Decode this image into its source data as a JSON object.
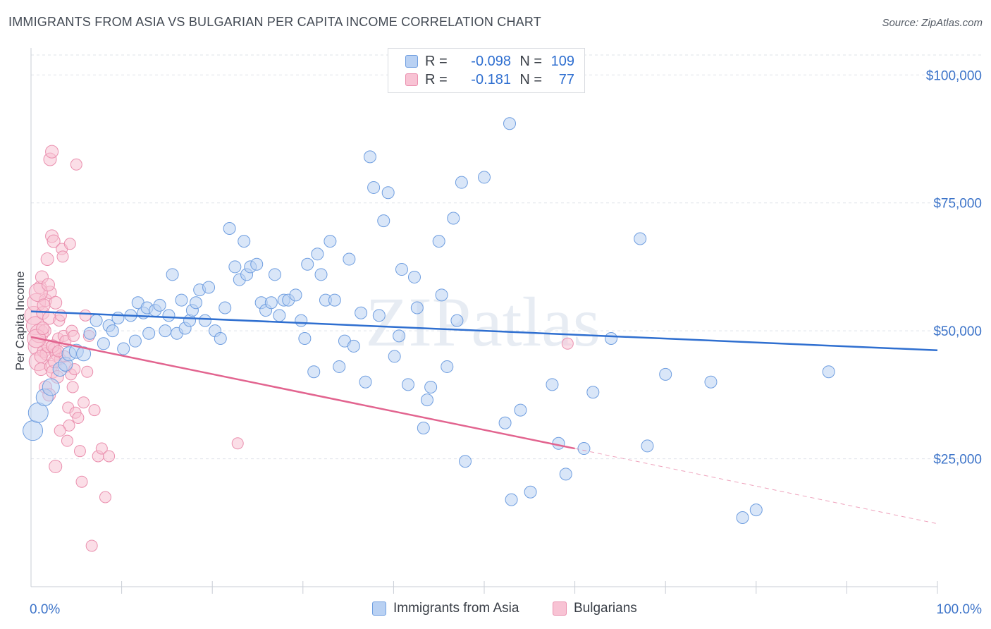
{
  "title": "IMMIGRANTS FROM ASIA VS BULGARIAN PER CAPITA INCOME CORRELATION CHART",
  "source": "Source: ZipAtlas.com",
  "legend": {
    "rows": [
      {
        "r_label": "R =",
        "r_value": "-0.098",
        "n_label": "N =",
        "n_value": "109"
      },
      {
        "r_label": "R =",
        "r_value": "-0.181",
        "n_label": "N =",
        "n_value": "77"
      }
    ]
  },
  "bottom_legend": [
    "Immigrants from Asia",
    "Bulgarians"
  ],
  "watermark": "ZIPatlas",
  "colors": {
    "blue_fill": "#b9d1f3",
    "blue_stroke": "#6f9ee0",
    "blue_line": "#2f6fd0",
    "pink_fill": "#f8c3d4",
    "pink_stroke": "#ea8fae",
    "pink_line": "#e2648f",
    "tick_text": "#3d74c9",
    "grid": "#dfe3ea"
  },
  "chart_data": {
    "type": "scatter",
    "title": "IMMIGRANTS FROM ASIA VS BULGARIAN PER CAPITA INCOME CORRELATION CHART",
    "xlabel": "",
    "ylabel": "Per Capita Income",
    "xlim": [
      0,
      100
    ],
    "ylim": [
      0,
      105000
    ],
    "x_tick_labels": [
      "0.0%",
      "100.0%"
    ],
    "y_ticks": [
      25000,
      50000,
      75000,
      100000
    ],
    "y_tick_labels": [
      "$25,000",
      "$50,000",
      "$75,000",
      "$100,000"
    ],
    "grid": "horizontal dashed",
    "legend_position": "top-center",
    "series": [
      {
        "name": "Immigrants from Asia",
        "r": -0.098,
        "n": 109,
        "trend": {
          "x": [
            0,
            100
          ],
          "y": [
            53800,
            46200
          ]
        },
        "points": [
          [
            0.2,
            30500
          ],
          [
            0.8,
            34000
          ],
          [
            1.5,
            37000
          ],
          [
            2.2,
            39000
          ],
          [
            3.2,
            42500
          ],
          [
            3.8,
            43500
          ],
          [
            4.2,
            45500
          ],
          [
            5.0,
            46000
          ],
          [
            5.8,
            45500
          ],
          [
            6.5,
            49500
          ],
          [
            7.2,
            52000
          ],
          [
            8.0,
            47500
          ],
          [
            8.6,
            51000
          ],
          [
            9.0,
            50000
          ],
          [
            9.6,
            52500
          ],
          [
            10.2,
            46500
          ],
          [
            11.0,
            53000
          ],
          [
            11.5,
            48000
          ],
          [
            11.8,
            55500
          ],
          [
            12.4,
            53500
          ],
          [
            12.8,
            54500
          ],
          [
            13.0,
            49500
          ],
          [
            13.7,
            54000
          ],
          [
            14.2,
            55000
          ],
          [
            14.8,
            50000
          ],
          [
            15.2,
            53000
          ],
          [
            15.6,
            61000
          ],
          [
            16.1,
            49500
          ],
          [
            16.6,
            56000
          ],
          [
            17.0,
            50500
          ],
          [
            17.5,
            52000
          ],
          [
            17.8,
            54000
          ],
          [
            18.2,
            55500
          ],
          [
            18.6,
            58000
          ],
          [
            19.2,
            52000
          ],
          [
            19.6,
            58500
          ],
          [
            20.3,
            50000
          ],
          [
            20.9,
            48500
          ],
          [
            21.4,
            54500
          ],
          [
            21.9,
            70000
          ],
          [
            22.5,
            62500
          ],
          [
            23.0,
            60000
          ],
          [
            23.5,
            67500
          ],
          [
            23.8,
            61000
          ],
          [
            24.2,
            62500
          ],
          [
            24.9,
            63000
          ],
          [
            25.4,
            55500
          ],
          [
            25.9,
            54000
          ],
          [
            26.5,
            55500
          ],
          [
            26.9,
            61000
          ],
          [
            27.4,
            53000
          ],
          [
            27.9,
            56000
          ],
          [
            28.4,
            56000
          ],
          [
            29.2,
            57000
          ],
          [
            29.8,
            52000
          ],
          [
            30.2,
            48500
          ],
          [
            30.5,
            63000
          ],
          [
            31.2,
            42000
          ],
          [
            31.6,
            65000
          ],
          [
            32.0,
            61000
          ],
          [
            32.5,
            56000
          ],
          [
            33.0,
            67500
          ],
          [
            33.5,
            56000
          ],
          [
            34.0,
            43000
          ],
          [
            34.6,
            48000
          ],
          [
            35.1,
            64000
          ],
          [
            35.6,
            47000
          ],
          [
            36.4,
            53500
          ],
          [
            36.9,
            40000
          ],
          [
            37.4,
            84000
          ],
          [
            37.8,
            78000
          ],
          [
            38.4,
            53000
          ],
          [
            38.9,
            71500
          ],
          [
            39.4,
            77000
          ],
          [
            40.1,
            45000
          ],
          [
            40.6,
            49000
          ],
          [
            40.9,
            62000
          ],
          [
            41.6,
            39500
          ],
          [
            42.3,
            60500
          ],
          [
            42.6,
            54500
          ],
          [
            43.3,
            31000
          ],
          [
            43.7,
            36500
          ],
          [
            44.1,
            39000
          ],
          [
            45.0,
            67500
          ],
          [
            45.3,
            57000
          ],
          [
            45.9,
            43000
          ],
          [
            46.6,
            72000
          ],
          [
            47.0,
            52000
          ],
          [
            47.5,
            79000
          ],
          [
            47.9,
            24500
          ],
          [
            50.0,
            80000
          ],
          [
            52.3,
            32000
          ],
          [
            52.8,
            90500
          ],
          [
            53.0,
            17000
          ],
          [
            54.0,
            34500
          ],
          [
            55.1,
            18500
          ],
          [
            57.5,
            39500
          ],
          [
            58.2,
            28000
          ],
          [
            59.0,
            22000
          ],
          [
            61.0,
            27000
          ],
          [
            62.0,
            38000
          ],
          [
            64.0,
            48500
          ],
          [
            67.2,
            68000
          ],
          [
            68.0,
            27500
          ],
          [
            70.0,
            41500
          ],
          [
            75.0,
            40000
          ],
          [
            78.5,
            13500
          ],
          [
            80.0,
            15000
          ],
          [
            88.0,
            42000
          ]
        ]
      },
      {
        "name": "Bulgarians",
        "r": -0.181,
        "n": 77,
        "trend": {
          "x": [
            0,
            60
          ],
          "y": [
            48800,
            27000
          ]
        },
        "trend_dashed_extension": {
          "x": [
            60,
            100
          ],
          "y": [
            27000,
            12300
          ]
        },
        "points": [
          [
            0.3,
            53000
          ],
          [
            0.5,
            51000
          ],
          [
            0.6,
            55500
          ],
          [
            0.7,
            47000
          ],
          [
            0.8,
            44000
          ],
          [
            0.9,
            49500
          ],
          [
            1.0,
            58500
          ],
          [
            1.1,
            42500
          ],
          [
            1.2,
            60500
          ],
          [
            1.3,
            53500
          ],
          [
            1.4,
            46000
          ],
          [
            1.5,
            50000
          ],
          [
            1.6,
            56000
          ],
          [
            1.7,
            45500
          ],
          [
            1.8,
            64000
          ],
          [
            1.9,
            47000
          ],
          [
            2.0,
            52500
          ],
          [
            2.1,
            57500
          ],
          [
            2.2,
            43000
          ],
          [
            2.3,
            68500
          ],
          [
            2.4,
            42000
          ],
          [
            2.5,
            67500
          ],
          [
            2.6,
            46500
          ],
          [
            2.7,
            55500
          ],
          [
            2.8,
            45500
          ],
          [
            2.9,
            41000
          ],
          [
            3.0,
            48500
          ],
          [
            3.1,
            52000
          ],
          [
            3.2,
            44500
          ],
          [
            3.3,
            53000
          ],
          [
            3.4,
            66000
          ],
          [
            3.5,
            64500
          ],
          [
            3.6,
            49000
          ],
          [
            3.7,
            45000
          ],
          [
            3.8,
            48000
          ],
          [
            3.9,
            43000
          ],
          [
            4.0,
            28500
          ],
          [
            4.1,
            35000
          ],
          [
            4.2,
            31500
          ],
          [
            4.3,
            67000
          ],
          [
            4.4,
            41500
          ],
          [
            4.5,
            50000
          ],
          [
            4.6,
            39000
          ],
          [
            4.7,
            49000
          ],
          [
            4.8,
            42500
          ],
          [
            4.9,
            34000
          ],
          [
            5.0,
            82500
          ],
          [
            5.2,
            33000
          ],
          [
            5.4,
            26500
          ],
          [
            5.6,
            20500
          ],
          [
            5.8,
            36000
          ],
          [
            6.0,
            53000
          ],
          [
            6.2,
            42000
          ],
          [
            6.4,
            49000
          ],
          [
            6.7,
            8000
          ],
          [
            7.0,
            34500
          ],
          [
            7.4,
            25500
          ],
          [
            7.8,
            27000
          ],
          [
            8.2,
            17500
          ],
          [
            8.6,
            25500
          ],
          [
            2.1,
            83500
          ],
          [
            2.3,
            85000
          ],
          [
            1.6,
            39000
          ],
          [
            2.7,
            23500
          ],
          [
            3.2,
            30500
          ],
          [
            2.0,
            37500
          ],
          [
            1.1,
            45000
          ],
          [
            0.8,
            57500
          ],
          [
            1.4,
            55000
          ],
          [
            2.6,
            44000
          ],
          [
            1.9,
            59000
          ],
          [
            0.6,
            48500
          ],
          [
            1.3,
            50500
          ],
          [
            2.4,
            47000
          ],
          [
            3.0,
            46000
          ],
          [
            22.8,
            28000
          ],
          [
            59.2,
            47500
          ]
        ]
      }
    ]
  }
}
